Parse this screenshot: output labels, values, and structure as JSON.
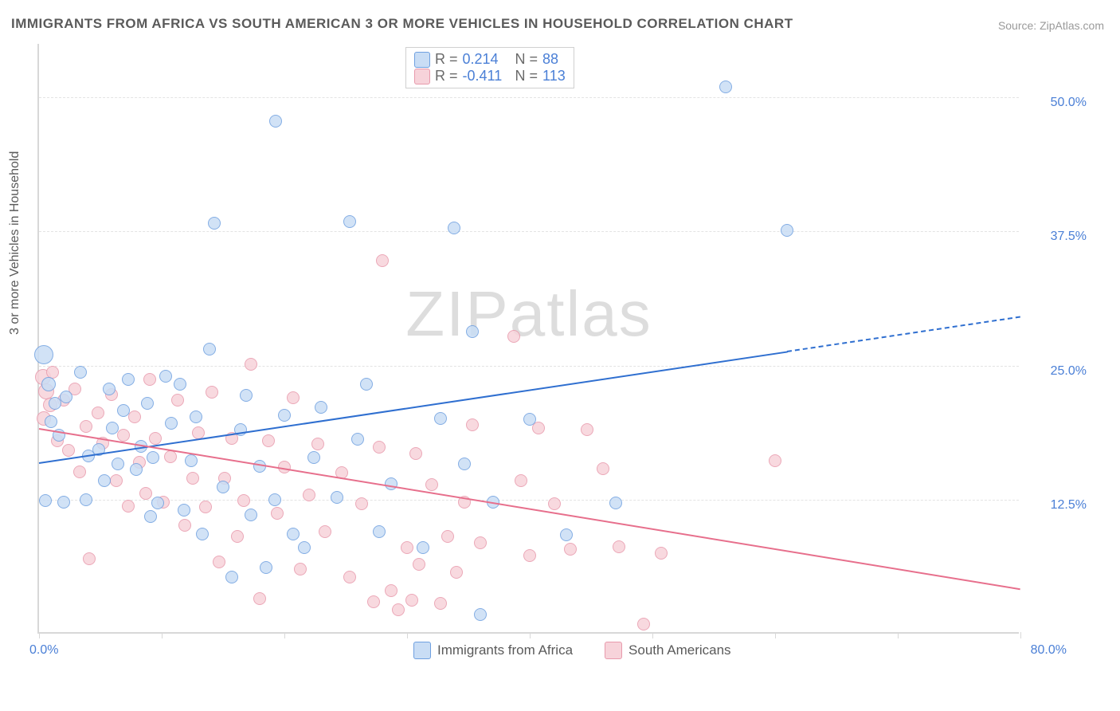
{
  "title": "IMMIGRANTS FROM AFRICA VS SOUTH AMERICAN 3 OR MORE VEHICLES IN HOUSEHOLD CORRELATION CHART",
  "source": "Source: ZipAtlas.com",
  "ylabel": "3 or more Vehicles in Household",
  "watermark_bold": "ZIP",
  "watermark_thin": "atlas",
  "chart": {
    "type": "scatter",
    "xlim": [
      0,
      80
    ],
    "ylim": [
      0,
      55
    ],
    "ytick_step": 12.5,
    "yticks": [
      "12.5%",
      "25.0%",
      "37.5%",
      "50.0%"
    ],
    "ytick_vals": [
      12.5,
      25.0,
      37.5,
      50.0
    ],
    "xtick_marks": [
      0,
      10,
      20,
      30,
      40,
      50,
      60,
      70,
      80
    ],
    "xtick_first": "0.0%",
    "xtick_last": "80.0%",
    "grid_color": "#e3e3e3",
    "background_color": "#ffffff",
    "axis_color": "#d8d8d8",
    "tick_label_color": "#4a7fd6",
    "label_fontsize": 16
  },
  "series_a": {
    "label": "Immigrants from Africa",
    "fill": "#c9ddf5",
    "stroke": "#6fa0e0",
    "line_color": "#2f6fd0",
    "R": "0.214",
    "N": "88",
    "line_y0": 16.0,
    "line_y100": 33.0,
    "solid_end_x": 61.0,
    "points": [
      {
        "x": 0.4,
        "y": 26.0,
        "r": 12
      },
      {
        "x": 0.8,
        "y": 23.3,
        "r": 9
      },
      {
        "x": 1.0,
        "y": 19.8,
        "r": 8
      },
      {
        "x": 1.3,
        "y": 21.5,
        "r": 8
      },
      {
        "x": 0.5,
        "y": 12.4,
        "r": 8
      },
      {
        "x": 2.0,
        "y": 12.3,
        "r": 8
      },
      {
        "x": 3.8,
        "y": 12.5,
        "r": 8
      },
      {
        "x": 1.6,
        "y": 18.5,
        "r": 8
      },
      {
        "x": 2.2,
        "y": 22.1,
        "r": 8
      },
      {
        "x": 3.4,
        "y": 24.4,
        "r": 8
      },
      {
        "x": 4.0,
        "y": 16.6,
        "r": 8
      },
      {
        "x": 4.9,
        "y": 17.2,
        "r": 8
      },
      {
        "x": 5.3,
        "y": 14.3,
        "r": 8
      },
      {
        "x": 5.7,
        "y": 22.8,
        "r": 8
      },
      {
        "x": 6.0,
        "y": 19.2,
        "r": 8
      },
      {
        "x": 6.4,
        "y": 15.8,
        "r": 8
      },
      {
        "x": 6.9,
        "y": 20.8,
        "r": 8
      },
      {
        "x": 7.3,
        "y": 23.7,
        "r": 8
      },
      {
        "x": 7.9,
        "y": 15.3,
        "r": 8
      },
      {
        "x": 8.3,
        "y": 17.5,
        "r": 8
      },
      {
        "x": 8.8,
        "y": 21.5,
        "r": 8
      },
      {
        "x": 9.1,
        "y": 10.9,
        "r": 8
      },
      {
        "x": 9.3,
        "y": 16.4,
        "r": 8
      },
      {
        "x": 9.7,
        "y": 12.2,
        "r": 8
      },
      {
        "x": 10.3,
        "y": 24.0,
        "r": 8
      },
      {
        "x": 10.8,
        "y": 19.6,
        "r": 8
      },
      {
        "x": 11.5,
        "y": 23.3,
        "r": 8
      },
      {
        "x": 11.8,
        "y": 11.5,
        "r": 8
      },
      {
        "x": 12.4,
        "y": 16.1,
        "r": 8
      },
      {
        "x": 12.8,
        "y": 20.2,
        "r": 8
      },
      {
        "x": 13.3,
        "y": 9.3,
        "r": 8
      },
      {
        "x": 13.9,
        "y": 26.5,
        "r": 8
      },
      {
        "x": 14.3,
        "y": 38.3,
        "r": 8
      },
      {
        "x": 15.0,
        "y": 13.7,
        "r": 8
      },
      {
        "x": 15.7,
        "y": 5.3,
        "r": 8
      },
      {
        "x": 16.4,
        "y": 19.0,
        "r": 8
      },
      {
        "x": 16.9,
        "y": 22.2,
        "r": 8
      },
      {
        "x": 17.3,
        "y": 11.1,
        "r": 8
      },
      {
        "x": 18.0,
        "y": 15.6,
        "r": 8
      },
      {
        "x": 18.5,
        "y": 6.2,
        "r": 8
      },
      {
        "x": 19.2,
        "y": 12.5,
        "r": 8
      },
      {
        "x": 19.3,
        "y": 47.8,
        "r": 8
      },
      {
        "x": 20.0,
        "y": 20.4,
        "r": 8
      },
      {
        "x": 20.7,
        "y": 9.3,
        "r": 8
      },
      {
        "x": 21.6,
        "y": 8.0,
        "r": 8
      },
      {
        "x": 22.4,
        "y": 16.4,
        "r": 8
      },
      {
        "x": 23.0,
        "y": 21.1,
        "r": 8
      },
      {
        "x": 24.3,
        "y": 12.7,
        "r": 8
      },
      {
        "x": 25.3,
        "y": 38.4,
        "r": 8
      },
      {
        "x": 26.0,
        "y": 18.1,
        "r": 8
      },
      {
        "x": 26.7,
        "y": 23.3,
        "r": 8
      },
      {
        "x": 27.7,
        "y": 9.5,
        "r": 8
      },
      {
        "x": 28.7,
        "y": 14.0,
        "r": 8
      },
      {
        "x": 31.3,
        "y": 8.0,
        "r": 8
      },
      {
        "x": 32.7,
        "y": 20.1,
        "r": 8
      },
      {
        "x": 33.8,
        "y": 37.8,
        "r": 8
      },
      {
        "x": 34.7,
        "y": 15.8,
        "r": 8
      },
      {
        "x": 35.3,
        "y": 28.2,
        "r": 8
      },
      {
        "x": 36.0,
        "y": 1.8,
        "r": 8
      },
      {
        "x": 37.0,
        "y": 12.3,
        "r": 8
      },
      {
        "x": 40.0,
        "y": 20.0,
        "r": 8
      },
      {
        "x": 43.0,
        "y": 9.2,
        "r": 8
      },
      {
        "x": 47.0,
        "y": 12.2,
        "r": 8
      },
      {
        "x": 56.0,
        "y": 51.0,
        "r": 8
      },
      {
        "x": 61.0,
        "y": 37.6,
        "r": 8
      }
    ]
  },
  "series_b": {
    "label": "South Americans",
    "fill": "#f7d3da",
    "stroke": "#e89aac",
    "line_color": "#e76f8c",
    "R": "-0.411",
    "N": "113",
    "line_y0": 19.2,
    "line_y100": 0.5,
    "solid_end_x": 80.0,
    "points": [
      {
        "x": 0.3,
        "y": 23.9,
        "r": 10
      },
      {
        "x": 0.6,
        "y": 22.6,
        "r": 10
      },
      {
        "x": 0.9,
        "y": 21.3,
        "r": 9
      },
      {
        "x": 0.4,
        "y": 20.1,
        "r": 9
      },
      {
        "x": 1.1,
        "y": 24.4,
        "r": 8
      },
      {
        "x": 1.5,
        "y": 18.0,
        "r": 8
      },
      {
        "x": 2.0,
        "y": 21.8,
        "r": 8
      },
      {
        "x": 2.4,
        "y": 17.1,
        "r": 8
      },
      {
        "x": 2.9,
        "y": 22.8,
        "r": 8
      },
      {
        "x": 3.3,
        "y": 15.1,
        "r": 8
      },
      {
        "x": 3.8,
        "y": 19.3,
        "r": 8
      },
      {
        "x": 4.1,
        "y": 7.0,
        "r": 8
      },
      {
        "x": 4.8,
        "y": 20.6,
        "r": 8
      },
      {
        "x": 5.2,
        "y": 17.8,
        "r": 8
      },
      {
        "x": 5.9,
        "y": 22.3,
        "r": 8
      },
      {
        "x": 6.3,
        "y": 14.3,
        "r": 8
      },
      {
        "x": 6.9,
        "y": 18.5,
        "r": 8
      },
      {
        "x": 7.3,
        "y": 11.9,
        "r": 8
      },
      {
        "x": 7.8,
        "y": 20.2,
        "r": 8
      },
      {
        "x": 8.2,
        "y": 16.0,
        "r": 8
      },
      {
        "x": 8.7,
        "y": 13.1,
        "r": 8
      },
      {
        "x": 9.0,
        "y": 23.7,
        "r": 8
      },
      {
        "x": 9.5,
        "y": 18.2,
        "r": 8
      },
      {
        "x": 10.1,
        "y": 12.3,
        "r": 8
      },
      {
        "x": 10.7,
        "y": 16.5,
        "r": 8
      },
      {
        "x": 11.3,
        "y": 21.8,
        "r": 8
      },
      {
        "x": 11.9,
        "y": 10.1,
        "r": 8
      },
      {
        "x": 12.5,
        "y": 14.5,
        "r": 8
      },
      {
        "x": 13.0,
        "y": 18.7,
        "r": 8
      },
      {
        "x": 13.6,
        "y": 11.8,
        "r": 8
      },
      {
        "x": 14.1,
        "y": 22.5,
        "r": 8
      },
      {
        "x": 14.7,
        "y": 6.7,
        "r": 8
      },
      {
        "x": 15.1,
        "y": 14.5,
        "r": 8
      },
      {
        "x": 15.7,
        "y": 18.2,
        "r": 8
      },
      {
        "x": 16.2,
        "y": 9.1,
        "r": 8
      },
      {
        "x": 16.7,
        "y": 12.4,
        "r": 8
      },
      {
        "x": 17.3,
        "y": 25.1,
        "r": 8
      },
      {
        "x": 18.0,
        "y": 3.3,
        "r": 8
      },
      {
        "x": 18.7,
        "y": 18.0,
        "r": 8
      },
      {
        "x": 19.4,
        "y": 11.2,
        "r": 8
      },
      {
        "x": 20.0,
        "y": 15.5,
        "r": 8
      },
      {
        "x": 20.7,
        "y": 22.0,
        "r": 8
      },
      {
        "x": 21.3,
        "y": 6.0,
        "r": 8
      },
      {
        "x": 22.0,
        "y": 12.9,
        "r": 8
      },
      {
        "x": 22.7,
        "y": 17.7,
        "r": 8
      },
      {
        "x": 23.3,
        "y": 9.5,
        "r": 8
      },
      {
        "x": 24.7,
        "y": 15.0,
        "r": 8
      },
      {
        "x": 25.3,
        "y": 5.3,
        "r": 8
      },
      {
        "x": 26.3,
        "y": 12.1,
        "r": 8
      },
      {
        "x": 27.3,
        "y": 3.0,
        "r": 8
      },
      {
        "x": 27.7,
        "y": 17.4,
        "r": 8
      },
      {
        "x": 28.0,
        "y": 34.8,
        "r": 8
      },
      {
        "x": 28.7,
        "y": 4.0,
        "r": 8
      },
      {
        "x": 29.3,
        "y": 2.2,
        "r": 8
      },
      {
        "x": 30.0,
        "y": 8.0,
        "r": 8
      },
      {
        "x": 30.4,
        "y": 3.1,
        "r": 8
      },
      {
        "x": 30.7,
        "y": 16.8,
        "r": 8
      },
      {
        "x": 31.0,
        "y": 6.5,
        "r": 8
      },
      {
        "x": 32.0,
        "y": 13.9,
        "r": 8
      },
      {
        "x": 32.7,
        "y": 2.8,
        "r": 8
      },
      {
        "x": 33.3,
        "y": 9.1,
        "r": 8
      },
      {
        "x": 34.0,
        "y": 5.7,
        "r": 8
      },
      {
        "x": 34.7,
        "y": 12.3,
        "r": 8
      },
      {
        "x": 35.3,
        "y": 19.5,
        "r": 8
      },
      {
        "x": 36.0,
        "y": 8.5,
        "r": 8
      },
      {
        "x": 38.7,
        "y": 27.7,
        "r": 8
      },
      {
        "x": 39.3,
        "y": 14.3,
        "r": 8
      },
      {
        "x": 40.0,
        "y": 7.3,
        "r": 8
      },
      {
        "x": 40.7,
        "y": 19.2,
        "r": 8
      },
      {
        "x": 42.0,
        "y": 12.1,
        "r": 8
      },
      {
        "x": 43.3,
        "y": 7.9,
        "r": 8
      },
      {
        "x": 44.7,
        "y": 19.0,
        "r": 8
      },
      {
        "x": 46.0,
        "y": 15.4,
        "r": 8
      },
      {
        "x": 47.3,
        "y": 8.1,
        "r": 8
      },
      {
        "x": 49.3,
        "y": 0.9,
        "r": 8
      },
      {
        "x": 50.7,
        "y": 7.5,
        "r": 8
      },
      {
        "x": 60.0,
        "y": 16.1,
        "r": 8
      }
    ]
  },
  "stats_labels": {
    "R": "R  =",
    "N": "N  ="
  }
}
